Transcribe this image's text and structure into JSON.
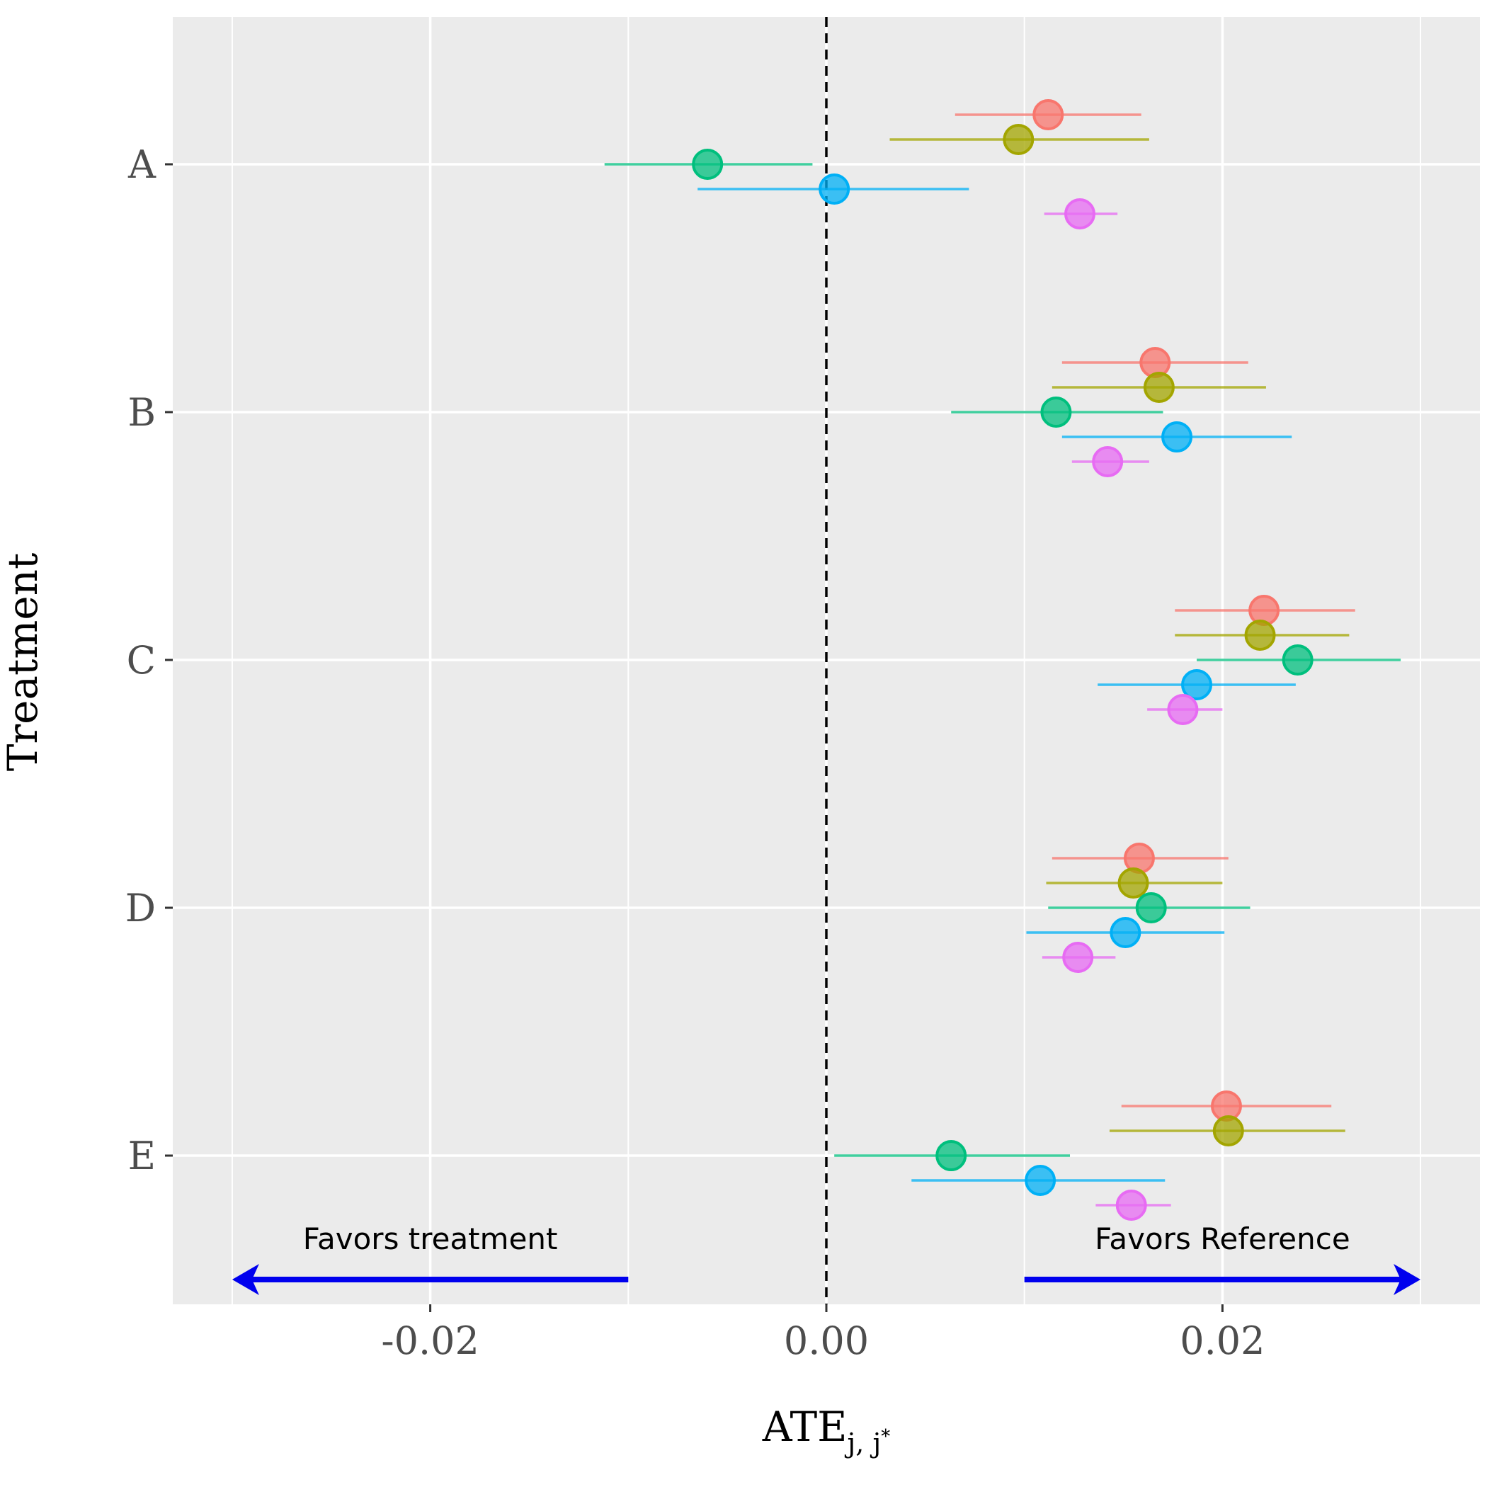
{
  "chart_data": {
    "type": "scatter",
    "subtype": "forest-plot-with-error-bars",
    "title": "",
    "xlabel": "ATE",
    "xlabel_subscript": "j, j",
    "xlabel_superscript": "*",
    "ylabel": "Treatment",
    "xlim": [
      -0.033,
      0.033
    ],
    "x_ticks": [
      -0.02,
      0.0,
      0.02
    ],
    "x_tick_labels": [
      "-0.02",
      "0.00",
      "0.02"
    ],
    "extra_gridlines_x": [
      -0.03,
      -0.01,
      0.01,
      0.03
    ],
    "categories": [
      "A",
      "B",
      "C",
      "D",
      "E"
    ],
    "reference_line_x": 0.0,
    "grid": true,
    "legend": "none",
    "series": [
      {
        "name": "series-1",
        "color": "#F8766D",
        "values": [
          0.0112,
          0.0166,
          0.0221,
          0.0158,
          0.0202
        ],
        "lower": [
          0.0065,
          0.0119,
          0.0176,
          0.0114,
          0.0149
        ],
        "upper": [
          0.0159,
          0.0213,
          0.0267,
          0.0203,
          0.0255
        ]
      },
      {
        "name": "series-2",
        "color": "#A3A500",
        "values": [
          0.0097,
          0.0168,
          0.0219,
          0.0155,
          0.0203
        ],
        "lower": [
          0.0032,
          0.0114,
          0.0176,
          0.0111,
          0.0143
        ],
        "upper": [
          0.0163,
          0.0222,
          0.0264,
          0.02,
          0.0262
        ]
      },
      {
        "name": "series-3",
        "color": "#00BF7D",
        "values": [
          -0.006,
          0.0116,
          0.0238,
          0.0164,
          0.0063
        ],
        "lower": [
          -0.0112,
          0.0063,
          0.0187,
          0.0112,
          0.0004
        ],
        "upper": [
          -0.0007,
          0.017,
          0.029,
          0.0214,
          0.0123
        ]
      },
      {
        "name": "series-4",
        "color": "#00B0F6",
        "values": [
          0.0004,
          0.0177,
          0.0187,
          0.0151,
          0.0108
        ],
        "lower": [
          -0.0065,
          0.0119,
          0.0137,
          0.0101,
          0.0043
        ],
        "upper": [
          0.0072,
          0.0235,
          0.0237,
          0.0201,
          0.0171
        ]
      },
      {
        "name": "series-5",
        "color": "#E76BF3",
        "values": [
          0.0128,
          0.0142,
          0.018,
          0.0127,
          0.0154
        ],
        "lower": [
          0.011,
          0.0124,
          0.0162,
          0.0109,
          0.0136
        ],
        "upper": [
          0.0147,
          0.0163,
          0.02,
          0.0146,
          0.0174
        ]
      }
    ],
    "annotations": [
      {
        "text": "Favors treatment",
        "arrow_direction": "left",
        "arrow_from_x": -0.01,
        "arrow_to_x": -0.03
      },
      {
        "text": "Favors Reference",
        "arrow_direction": "right",
        "arrow_from_x": 0.01,
        "arrow_to_x": 0.03
      }
    ],
    "annotation_color": "#0000EE"
  }
}
